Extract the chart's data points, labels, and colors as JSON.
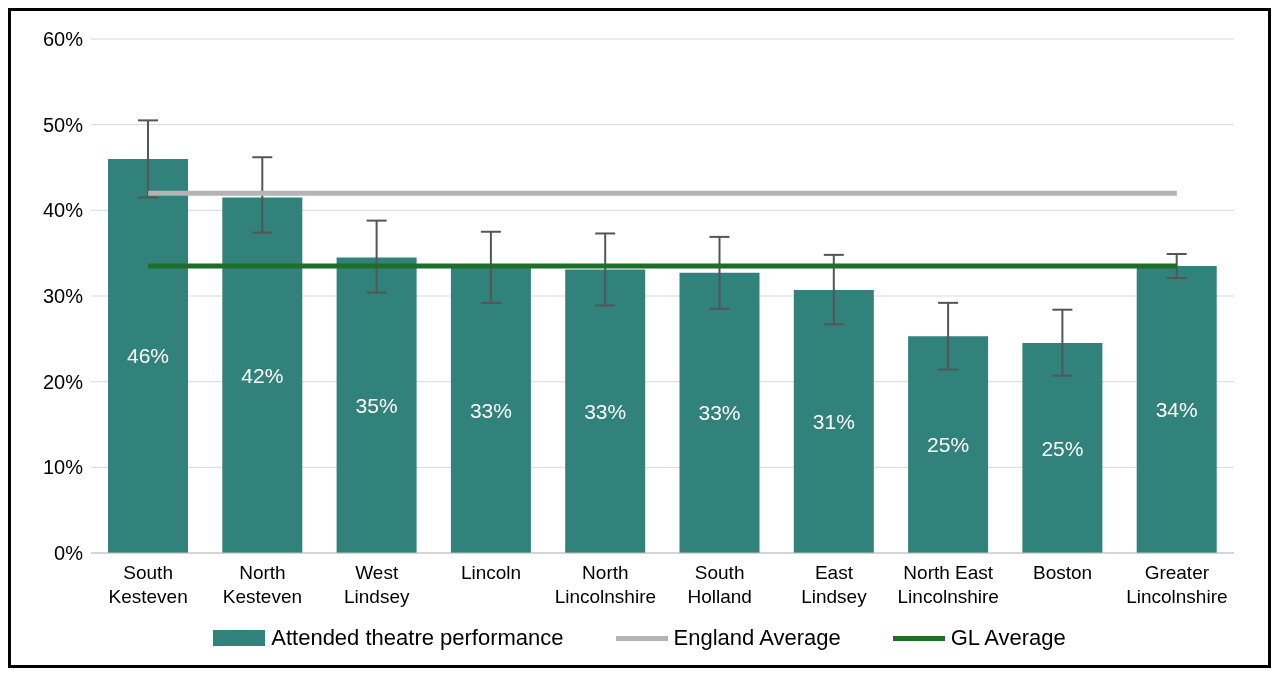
{
  "chart_data": {
    "type": "bar",
    "categories": [
      "South Kesteven",
      "North Kesteven",
      "West Lindsey",
      "Lincoln",
      "North Lincolnshire",
      "South Holland",
      "East Lindsey",
      "North East Lincolnshire",
      "Boston",
      "Greater Lincolnshire"
    ],
    "series": [
      {
        "name": "Attended theatre performance",
        "color": "#31827b",
        "values": [
          46.0,
          41.5,
          34.5,
          33.3,
          33.1,
          32.7,
          30.7,
          25.3,
          24.5,
          33.5
        ],
        "value_labels": [
          "46%",
          "42%",
          "35%",
          "33%",
          "33%",
          "33%",
          "31%",
          "25%",
          "25%",
          "34%"
        ],
        "errors": [
          [
            41.5,
            50.5
          ],
          [
            37.4,
            46.2
          ],
          [
            30.4,
            38.8
          ],
          [
            29.2,
            37.5
          ],
          [
            28.9,
            37.3
          ],
          [
            28.5,
            36.9
          ],
          [
            26.7,
            34.8
          ],
          [
            21.4,
            29.2
          ],
          [
            20.7,
            28.4
          ],
          [
            32.1,
            34.9
          ]
        ]
      },
      {
        "name": "England Average",
        "type": "line",
        "color": "#b4b4b4",
        "values": [
          42,
          42,
          42,
          42,
          42,
          42,
          42,
          42,
          42,
          42
        ]
      },
      {
        "name": "GL Average",
        "type": "line",
        "color": "#1e6e2a",
        "values": [
          33.5,
          33.5,
          33.5,
          33.5,
          33.5,
          33.5,
          33.5,
          33.5,
          33.5,
          33.5
        ]
      }
    ],
    "ylim": [
      0,
      60
    ],
    "yticks": [
      {
        "value": 0,
        "label": "0%"
      },
      {
        "value": 10,
        "label": "10%"
      },
      {
        "value": 20,
        "label": "20%"
      },
      {
        "value": 30,
        "label": "30%"
      },
      {
        "value": 40,
        "label": "40%"
      },
      {
        "value": 50,
        "label": "50%"
      },
      {
        "value": 60,
        "label": "60%"
      }
    ],
    "grid": "y",
    "legend": "bottom",
    "marker": "none",
    "line_style": "solid"
  }
}
